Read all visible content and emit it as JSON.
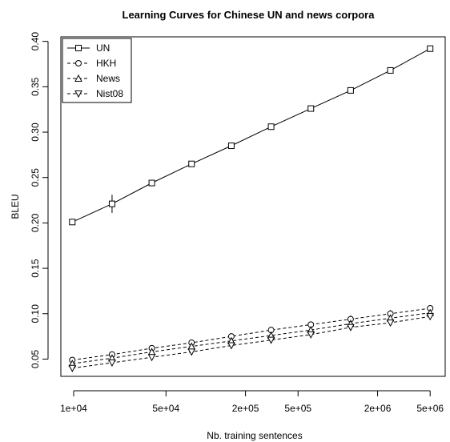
{
  "chart_data": {
    "type": "line",
    "title": "Learning Curves for Chinese UN and news corpora",
    "xlabel": "Nb. training sentences",
    "ylabel": "BLEU",
    "x_scale": "log",
    "xlim": [
      8000,
      6500000
    ],
    "ylim": [
      0.031,
      0.405
    ],
    "x_ticks": [
      10000,
      50000,
      200000,
      500000,
      2000000,
      5000000
    ],
    "x_tick_labels": [
      "1e+04",
      "5e+04",
      "2e+05",
      "5e+05",
      "2e+06",
      "5e+06"
    ],
    "y_ticks": [
      0.05,
      0.1,
      0.15,
      0.2,
      0.25,
      0.3,
      0.35,
      0.4
    ],
    "y_tick_labels": [
      "0.05",
      "0.10",
      "0.15",
      "0.20",
      "0.25",
      "0.30",
      "0.35",
      "0.40"
    ],
    "x": [
      9766,
      19531,
      39063,
      78125,
      156250,
      312500,
      625000,
      1250000,
      2500000,
      5000000
    ],
    "series": [
      {
        "name": "UN",
        "marker": "square",
        "dash": "solid",
        "values": [
          0.201,
          0.221,
          0.244,
          0.265,
          0.285,
          0.306,
          0.326,
          0.346,
          0.368,
          0.392
        ],
        "err": [
          0.0,
          0.01,
          0.0,
          0.0,
          0.0,
          0.0,
          0.0,
          0.0,
          0.0,
          0.0
        ]
      },
      {
        "name": "HKH",
        "marker": "circle",
        "dash": "dashed",
        "values": [
          0.049,
          0.055,
          0.062,
          0.068,
          0.075,
          0.082,
          0.088,
          0.094,
          0.1,
          0.106
        ],
        "err": [
          0.0,
          0.0,
          0.0,
          0.0,
          0.0,
          0.0,
          0.0,
          0.004,
          0.004,
          0.0
        ]
      },
      {
        "name": "News",
        "marker": "triangle-up",
        "dash": "dashed",
        "values": [
          0.045,
          0.051,
          0.058,
          0.064,
          0.07,
          0.076,
          0.082,
          0.089,
          0.095,
          0.101
        ],
        "err": [
          0.0,
          0.0,
          0.0,
          0.0,
          0.0,
          0.0,
          0.0,
          0.004,
          0.004,
          0.0
        ]
      },
      {
        "name": "Nist08",
        "marker": "triangle-down",
        "dash": "dashed",
        "values": [
          0.04,
          0.046,
          0.052,
          0.058,
          0.065,
          0.071,
          0.077,
          0.085,
          0.09,
          0.097
        ],
        "err": [
          0.0,
          0.0,
          0.0,
          0.0,
          0.0,
          0.0,
          0.0,
          0.0,
          0.0,
          0.0
        ]
      }
    ],
    "legend": "top-left",
    "grid": false,
    "colors": {
      "line": "#000000",
      "background": "#ffffff"
    }
  }
}
